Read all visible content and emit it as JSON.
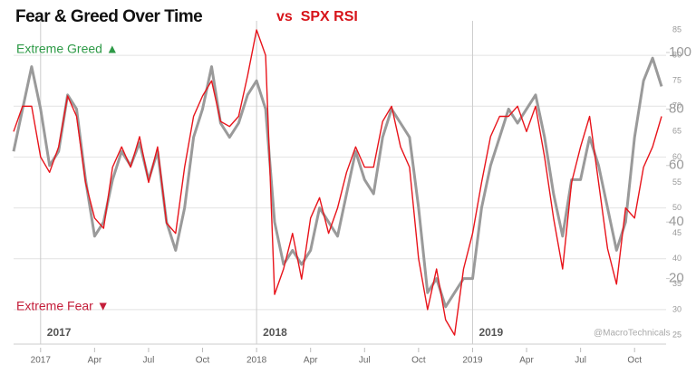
{
  "chart_data": {
    "type": "line",
    "title": "Fear & Greed Over Time",
    "subtitle": "vs  SPX RSI",
    "annotations": [
      "Extreme Greed ▲",
      "Extreme Fear ▼"
    ],
    "year_labels": [
      "2017",
      "2018",
      "2019"
    ],
    "watermark": "@MacroTechnicals",
    "categories": [
      null,
      null,
      null,
      "2017",
      null,
      null,
      null,
      null,
      null,
      "Apr",
      null,
      null,
      null,
      null,
      null,
      "Jul",
      null,
      null,
      null,
      null,
      null,
      "Oct",
      null,
      null,
      null,
      null,
      null,
      "2018",
      null,
      null,
      null,
      null,
      null,
      "Apr",
      null,
      null,
      null,
      null,
      null,
      "Jul",
      null,
      null,
      null,
      null,
      null,
      "Oct",
      null,
      null,
      null,
      null,
      null,
      "2019",
      null,
      null,
      null,
      null,
      null,
      "Apr",
      null,
      null,
      null,
      null,
      null,
      "Jul",
      null,
      null,
      null,
      null,
      null,
      "Oct",
      null,
      null,
      null
    ],
    "series": [
      {
        "color": "#9a9a9a",
        "axis": "y",
        "values": [
          65,
          80,
          95,
          80,
          60,
          65,
          85,
          80,
          55,
          35,
          40,
          55,
          65,
          60,
          68,
          55,
          65,
          40,
          30,
          45,
          70,
          80,
          95,
          75,
          70,
          75,
          85,
          90,
          80,
          40,
          25,
          30,
          25,
          30,
          45,
          40,
          35,
          50,
          65,
          55,
          50,
          70,
          80,
          75,
          70,
          45,
          15,
          20,
          10,
          15,
          20,
          20,
          45,
          60,
          70,
          80,
          75,
          80,
          85,
          70,
          50,
          35,
          55,
          55,
          70,
          60,
          45,
          30,
          40,
          70,
          90,
          98,
          88
        ]
      },
      {
        "color": "#e8141b",
        "axis": "y2",
        "values": [
          65,
          70,
          70,
          60,
          57,
          62,
          72,
          68,
          55,
          48,
          46,
          58,
          62,
          58,
          64,
          55,
          62,
          47,
          45,
          58,
          68,
          72,
          75,
          67,
          66,
          68,
          76,
          85,
          80,
          33,
          38,
          45,
          36,
          48,
          52,
          45,
          50,
          57,
          62,
          58,
          58,
          67,
          70,
          62,
          58,
          40,
          30,
          38,
          28,
          25,
          38,
          45,
          55,
          64,
          68,
          68,
          70,
          65,
          70,
          60,
          48,
          38,
          55,
          62,
          68,
          55,
          42,
          35,
          50,
          48,
          58,
          62,
          68
        ]
      }
    ],
    "ylim": [
      0,
      108
    ],
    "yticks": [
      20,
      40,
      60,
      80,
      100
    ],
    "y2lim": [
      25,
      85
    ],
    "y2ticks": [
      25,
      30,
      35,
      40,
      45,
      50,
      55,
      60,
      65,
      70,
      75,
      80,
      85
    ],
    "grid": true
  }
}
